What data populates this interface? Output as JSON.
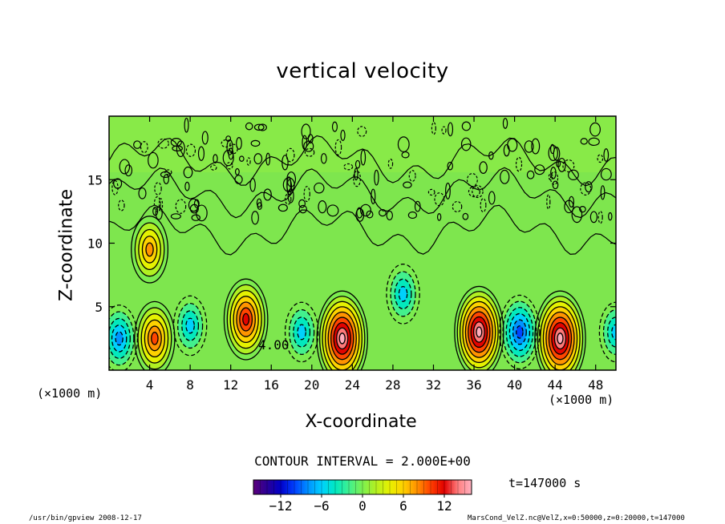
{
  "chart_data": {
    "type": "heatmap",
    "title": "vertical velocity",
    "xlabel": "X-coordinate",
    "ylabel": "Z-coordinate",
    "x_unit": "(×1000 m)",
    "y_unit": "(×1000 m)",
    "xlim": [
      0,
      50
    ],
    "ylim": [
      0,
      20
    ],
    "x_ticks": [
      4,
      8,
      12,
      16,
      20,
      24,
      28,
      32,
      36,
      40,
      44,
      48
    ],
    "y_ticks": [
      5,
      10,
      15
    ],
    "contour_label": "4.00",
    "contour_interval_text": "CONTOUR INTERVAL = 2.000E+00",
    "colorbar": {
      "ticks": [
        -12,
        -6,
        0,
        6,
        12
      ],
      "range": [
        -16,
        16
      ],
      "colors": [
        "#5b007a",
        "#2a0096",
        "#0000c8",
        "#0040ff",
        "#0090ff",
        "#00d0ff",
        "#00e8c0",
        "#40f090",
        "#7cf050",
        "#b4f020",
        "#e8f000",
        "#ffd000",
        "#ff9000",
        "#ff4000",
        "#e00000",
        "#ff8080",
        "#ffb0c0"
      ]
    },
    "updrafts": [
      {
        "x": 4.5,
        "z": 2.5,
        "w": 10
      },
      {
        "x": 4.0,
        "z": 9.5,
        "w": 8
      },
      {
        "x": 13.5,
        "z": 4.0,
        "w": 12
      },
      {
        "x": 23.0,
        "z": 2.5,
        "w": 16
      },
      {
        "x": 36.5,
        "z": 3.0,
        "w": 15
      },
      {
        "x": 44.5,
        "z": 2.5,
        "w": 16
      }
    ],
    "downdrafts": [
      {
        "x": 1.0,
        "z": 2.5,
        "w": -8
      },
      {
        "x": 8.0,
        "z": 3.5,
        "w": -6
      },
      {
        "x": 19.0,
        "z": 3.0,
        "w": -6
      },
      {
        "x": 29.0,
        "z": 6.0,
        "w": -6
      },
      {
        "x": 40.5,
        "z": 3.0,
        "w": -10
      },
      {
        "x": 50.0,
        "z": 3.0,
        "w": -6
      }
    ],
    "time_label": "t=147000 s",
    "footer_left": "/usr/bin/gpview  2008-12-17",
    "footer_right": "MarsCond_VelZ.nc@VelZ,x=0:50000,z=0:20000,t=147000"
  }
}
